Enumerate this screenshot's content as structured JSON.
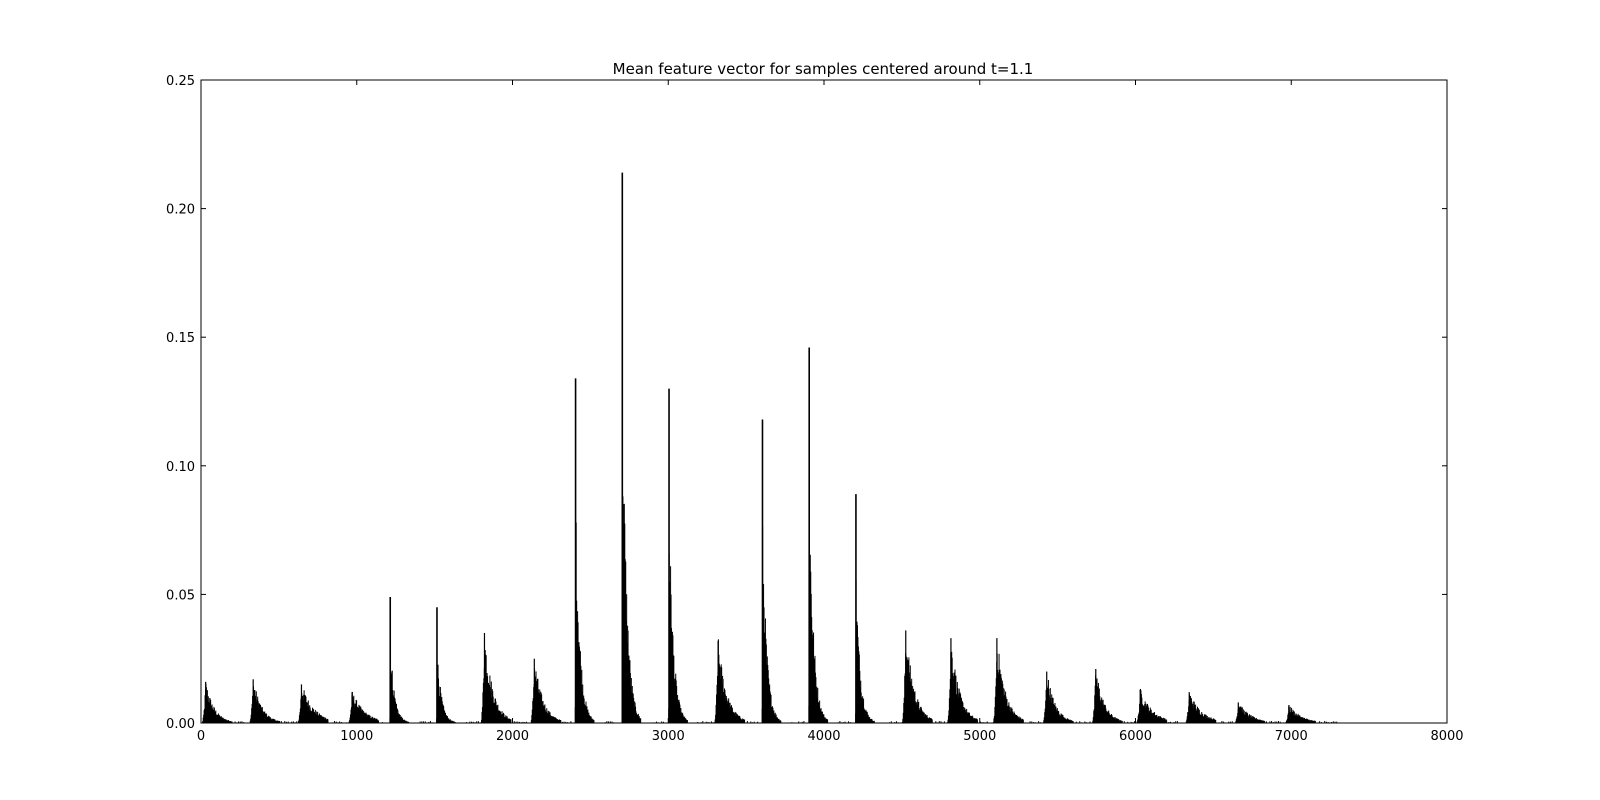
{
  "chart_data": {
    "type": "bar",
    "title": "Mean feature vector for samples centered around t=1.1",
    "xlabel": "",
    "ylabel": "",
    "xlim": [
      0,
      8000
    ],
    "ylim": [
      0,
      0.25
    ],
    "x_ticks": [
      "0",
      "1000",
      "2000",
      "3000",
      "4000",
      "5000",
      "6000",
      "7000",
      "8000"
    ],
    "y_ticks": [
      "0.00",
      "0.05",
      "0.10",
      "0.15",
      "0.20",
      "0.25"
    ],
    "grid": false,
    "legend": "none",
    "bar_color": "#000000",
    "peaks": [
      {
        "x": 30,
        "y": 0.016
      },
      {
        "x": 335,
        "y": 0.017
      },
      {
        "x": 645,
        "y": 0.015
      },
      {
        "x": 970,
        "y": 0.012
      },
      {
        "x": 1215,
        "y": 0.049
      },
      {
        "x": 1515,
        "y": 0.045
      },
      {
        "x": 1820,
        "y": 0.035
      },
      {
        "x": 2140,
        "y": 0.025
      },
      {
        "x": 2405,
        "y": 0.134
      },
      {
        "x": 2705,
        "y": 0.214
      },
      {
        "x": 3005,
        "y": 0.13
      },
      {
        "x": 3320,
        "y": 0.032
      },
      {
        "x": 3605,
        "y": 0.118
      },
      {
        "x": 3905,
        "y": 0.146
      },
      {
        "x": 4205,
        "y": 0.089
      },
      {
        "x": 4525,
        "y": 0.036
      },
      {
        "x": 4815,
        "y": 0.033
      },
      {
        "x": 5110,
        "y": 0.033
      },
      {
        "x": 5430,
        "y": 0.02
      },
      {
        "x": 5745,
        "y": 0.021
      },
      {
        "x": 6030,
        "y": 0.013
      },
      {
        "x": 6345,
        "y": 0.012
      },
      {
        "x": 6660,
        "y": 0.008
      },
      {
        "x": 6985,
        "y": 0.007
      }
    ]
  }
}
